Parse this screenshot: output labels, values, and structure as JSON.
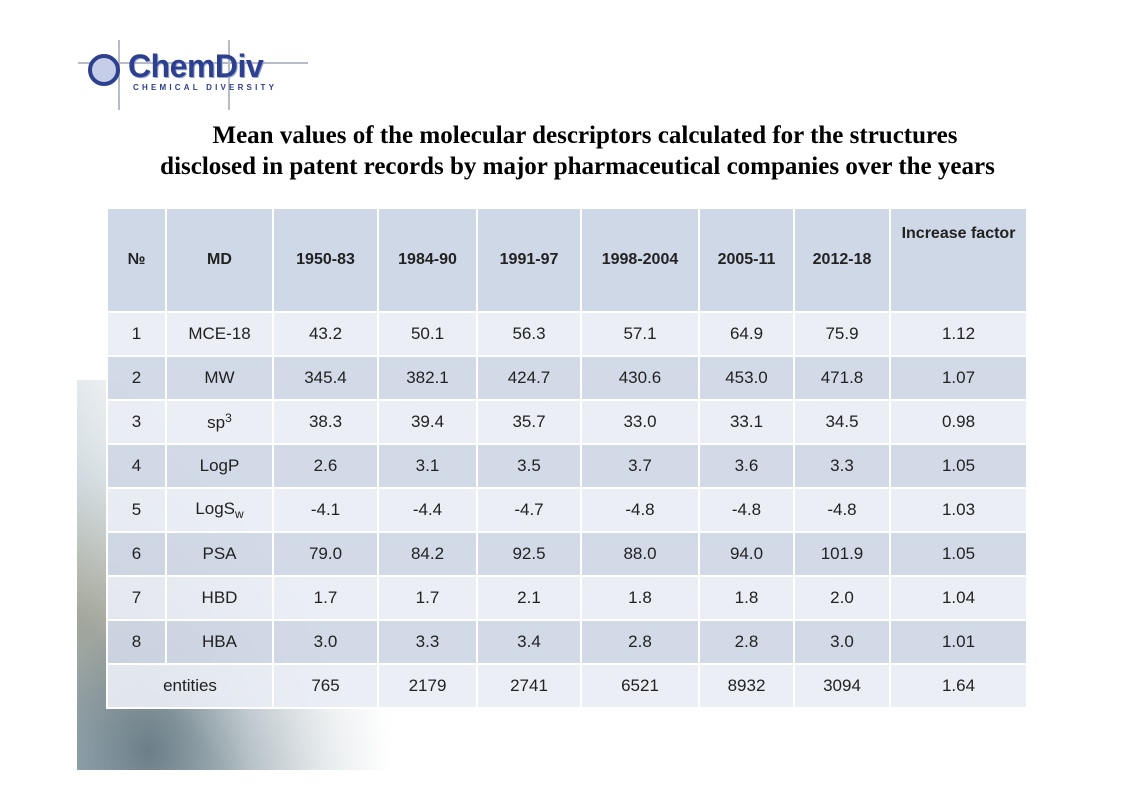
{
  "logo": {
    "name": "ChemDiv",
    "tagline": "CHEMICAL DIVERSITY"
  },
  "title": {
    "line1": "Mean values of the molecular descriptors calculated for the structures",
    "line2": "disclosed in patent records by major pharmaceutical companies over the years"
  },
  "table": {
    "headers": [
      "№",
      "MD",
      "1950-83",
      "1984-90",
      "1991-97",
      "1998-2004",
      "2005-11",
      "2012-18",
      "Increase factor"
    ],
    "rows": [
      {
        "no": "1",
        "md": "MCE-18",
        "values": [
          "43.2",
          "50.1",
          "56.3",
          "57.1",
          "64.9",
          "75.9",
          "1.12"
        ]
      },
      {
        "no": "2",
        "md": "MW",
        "values": [
          "345.4",
          "382.1",
          "424.7",
          "430.6",
          "453.0",
          "471.8",
          "1.07"
        ]
      },
      {
        "no": "3",
        "md": "sp",
        "md_sup": "3",
        "values": [
          "38.3",
          "39.4",
          "35.7",
          "33.0",
          "33.1",
          "34.5",
          "0.98"
        ]
      },
      {
        "no": "4",
        "md": "LogP",
        "values": [
          "2.6",
          "3.1",
          "3.5",
          "3.7",
          "3.6",
          "3.3",
          "1.05"
        ]
      },
      {
        "no": "5",
        "md": "LogS",
        "md_sub": "w",
        "values": [
          "-4.1",
          "-4.4",
          "-4.7",
          "-4.8",
          "-4.8",
          "-4.8",
          "1.03"
        ]
      },
      {
        "no": "6",
        "md": "PSA",
        "values": [
          "79.0",
          "84.2",
          "92.5",
          "88.0",
          "94.0",
          "101.9",
          "1.05"
        ]
      },
      {
        "no": "7",
        "md": "HBD",
        "values": [
          "1.7",
          "1.7",
          "2.1",
          "1.8",
          "1.8",
          "2.0",
          "1.04"
        ]
      },
      {
        "no": "8",
        "md": "HBA",
        "values": [
          "3.0",
          "3.3",
          "3.4",
          "2.8",
          "2.8",
          "3.0",
          "1.01"
        ]
      }
    ],
    "footer": {
      "label": "entities",
      "values": [
        "765",
        "2179",
        "2741",
        "6521",
        "8932",
        "3094",
        "1.64"
      ]
    }
  }
}
